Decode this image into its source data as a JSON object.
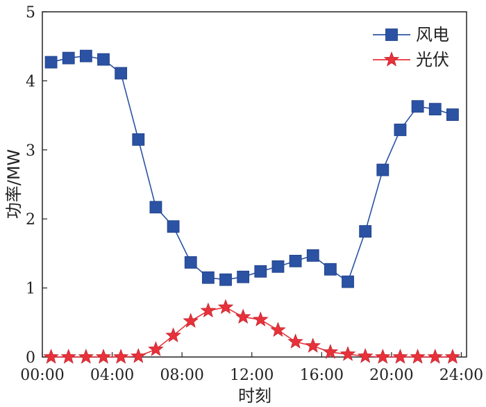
{
  "chart_data": {
    "type": "line",
    "xlabel": "时刻",
    "ylabel": "功率/MW",
    "xlim": [
      0,
      24.3
    ],
    "ylim": [
      0,
      5
    ],
    "x_ticks": [
      {
        "value": 0,
        "label": "00:00"
      },
      {
        "value": 4,
        "label": "04:00"
      },
      {
        "value": 8,
        "label": "08:00"
      },
      {
        "value": 12,
        "label": "12:00"
      },
      {
        "value": 16,
        "label": "16:00"
      },
      {
        "value": 20,
        "label": "20:00"
      },
      {
        "value": 24,
        "label": "24:00"
      }
    ],
    "y_ticks": [
      {
        "value": 0,
        "label": "0"
      },
      {
        "value": 1,
        "label": "1"
      },
      {
        "value": 2,
        "label": "2"
      },
      {
        "value": 3,
        "label": "3"
      },
      {
        "value": 4,
        "label": "4"
      },
      {
        "value": 5,
        "label": "5"
      }
    ],
    "x": [
      0,
      1,
      2,
      3,
      4,
      5,
      6,
      7,
      8,
      9,
      10,
      11,
      12,
      13,
      14,
      15,
      16,
      17,
      18,
      19,
      20,
      21,
      22,
      23
    ],
    "series": [
      {
        "name": "风电",
        "color": "#2b52a3",
        "marker": "square",
        "values": [
          4.27,
          4.33,
          4.36,
          4.31,
          4.11,
          3.15,
          2.17,
          1.89,
          1.37,
          1.15,
          1.12,
          1.16,
          1.24,
          1.31,
          1.39,
          1.47,
          1.27,
          1.09,
          1.82,
          2.71,
          3.29,
          3.63,
          3.59,
          3.51
        ]
      },
      {
        "name": "光伏",
        "color": "#e8313a",
        "marker": "star",
        "values": [
          0,
          0,
          0,
          0,
          0,
          0.01,
          0.11,
          0.31,
          0.52,
          0.67,
          0.72,
          0.58,
          0.54,
          0.39,
          0.22,
          0.16,
          0.07,
          0.04,
          0.01,
          0,
          0,
          0,
          0,
          0
        ]
      }
    ],
    "grid": false,
    "legend_position": "top-right"
  }
}
